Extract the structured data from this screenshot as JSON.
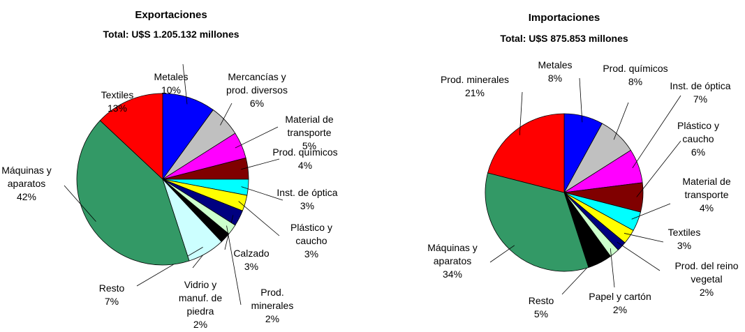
{
  "chart_data": [
    {
      "type": "pie",
      "title": "Exportaciones",
      "subtitle": "Total: U$S 1.205.132 millones",
      "categories": [
        "Metales",
        "Mercancías y\nprod. diversos",
        "Material de\ntransporte",
        "Prod. químicos",
        "Inst. de óptica",
        "Plástico y\ncaucho",
        "Calzado",
        "Prod.\nminerales",
        "Vidrio y\nmanuf. de\npiedra",
        "Resto",
        "Máquinas y\naparatos",
        "Textiles"
      ],
      "values": [
        10,
        6,
        5,
        4,
        3,
        3,
        3,
        2,
        2,
        7,
        42,
        13
      ],
      "value_labels": [
        "10%",
        "6%",
        "5%",
        "4%",
        "3%",
        "3%",
        "3%",
        "2%",
        "2%",
        "7%",
        "42%",
        "13%"
      ],
      "colors": [
        "#0000ff",
        "#c0c0c0",
        "#ff00ff",
        "#800000",
        "#00ffff",
        "#ffff00",
        "#000080",
        "#ccffcc",
        "#000000",
        "#ccffff",
        "#339966",
        "#ff0000"
      ]
    },
    {
      "type": "pie",
      "title": "Importaciones",
      "subtitle": "Total: U$S 875.853 millones",
      "categories": [
        "Metales",
        "Prod. químicos",
        "Inst. de óptica",
        "Plástico y\ncaucho",
        "Material de\ntransporte",
        "Textiles",
        "Prod. del reino\nvegetal",
        "Papel y cartón",
        "Resto",
        "Máquinas y\naparatos",
        "Prod. minerales"
      ],
      "values": [
        8,
        8,
        7,
        6,
        4,
        3,
        2,
        2,
        5,
        34,
        21
      ],
      "value_labels": [
        "8%",
        "8%",
        "7%",
        "6%",
        "4%",
        "3%",
        "2%",
        "2%",
        "5%",
        "34%",
        "21%"
      ],
      "colors": [
        "#0000ff",
        "#c0c0c0",
        "#ff00ff",
        "#800000",
        "#00ffff",
        "#ffff00",
        "#000080",
        "#ccffcc",
        "#000000",
        "#339966",
        "#ff0000"
      ]
    }
  ]
}
